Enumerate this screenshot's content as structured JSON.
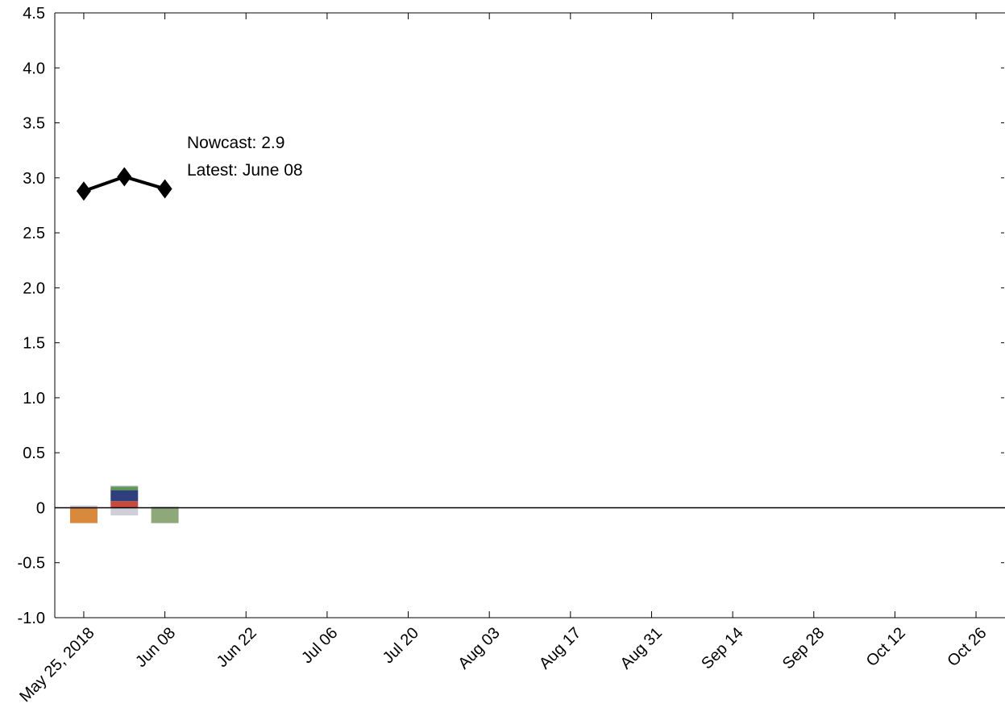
{
  "chart_data": {
    "type": "bar+line",
    "title": "",
    "xlabel": "",
    "ylabel": "",
    "ylim": [
      -1.0,
      4.5
    ],
    "yticks": [
      "-1.0",
      "-0.5",
      "0",
      "0.5",
      "1.0",
      "1.5",
      "2.0",
      "2.5",
      "3.0",
      "3.5",
      "4.0",
      "4.5"
    ],
    "x_tick_labels": [
      "May 25, 2018",
      "Jun 08",
      "Jun 22",
      "Jul 06",
      "Jul 20",
      "Aug 03",
      "Aug 17",
      "Aug 31",
      "Sep 14",
      "Sep 28",
      "Oct 12",
      "Oct 26"
    ],
    "x_tick_dates": [
      "2018-05-25",
      "2018-06-08",
      "2018-06-22",
      "2018-07-06",
      "2018-07-20",
      "2018-08-03",
      "2018-08-17",
      "2018-08-31",
      "2018-09-14",
      "2018-09-28",
      "2018-10-12",
      "2018-10-26"
    ],
    "x_range": [
      "2018-05-20",
      "2018-10-31"
    ],
    "grid": false,
    "line_series": {
      "marker": "diamond",
      "color": "#000000",
      "points": [
        {
          "x": "2018-05-25",
          "y": 2.88
        },
        {
          "x": "2018-06-01",
          "y": 3.01
        },
        {
          "x": "2018-06-08",
          "y": 2.9
        }
      ]
    },
    "bar_stacks": [
      {
        "x": "2018-05-25",
        "segments": [
          {
            "value": 0.02,
            "color": "#c8c8d2"
          },
          {
            "value": -0.14,
            "color": "#d9893c"
          }
        ]
      },
      {
        "x": "2018-06-01",
        "segments": [
          {
            "value": 0.06,
            "color": "#c84a3c"
          },
          {
            "value": 0.1,
            "color": "#2f3f7d"
          },
          {
            "value": 0.03,
            "color": "#5e9a4e"
          },
          {
            "value": 0.01,
            "color": "#aab0c8"
          },
          {
            "value": -0.07,
            "color": "#cfcfd8"
          }
        ]
      },
      {
        "x": "2018-06-08",
        "segments": [
          {
            "value": 0.01,
            "color": "#c8c8d2"
          },
          {
            "value": -0.14,
            "color": "#8fa87a"
          }
        ]
      }
    ],
    "annotations": [
      "Nowcast:  2.9",
      "Latest: June 08"
    ]
  }
}
